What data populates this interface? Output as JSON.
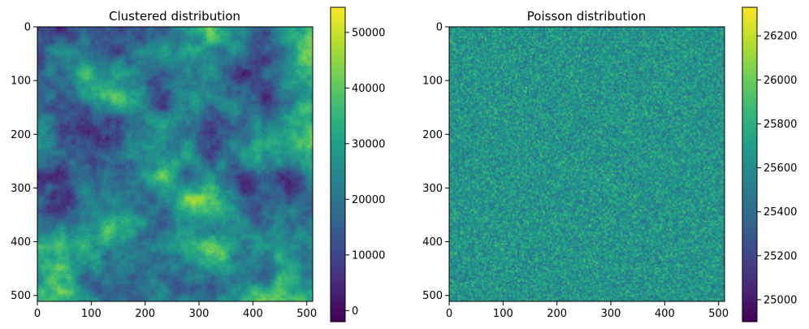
{
  "chart_data": [
    {
      "type": "heatmap",
      "title": "Clustered distribution",
      "xlim": [
        0,
        511
      ],
      "ylim": [
        511,
        0
      ],
      "x_ticks": [
        0,
        100,
        200,
        300,
        400,
        500
      ],
      "y_ticks": [
        0,
        100,
        200,
        300,
        400,
        500
      ],
      "colormap": "viridis",
      "color_range": [
        -2000,
        54500
      ],
      "colorbar_ticks": [
        0,
        10000,
        20000,
        30000,
        40000,
        50000
      ],
      "texture": "clustered"
    },
    {
      "type": "heatmap",
      "title": "Poisson distribution",
      "xlim": [
        0,
        511
      ],
      "ylim": [
        511,
        0
      ],
      "x_ticks": [
        0,
        100,
        200,
        300,
        400,
        500
      ],
      "y_ticks": [
        0,
        100,
        200,
        300,
        400,
        500
      ],
      "colormap": "viridis",
      "color_range": [
        24900,
        26330
      ],
      "colorbar_ticks": [
        25000,
        25200,
        25400,
        25600,
        25800,
        26000,
        26200
      ],
      "texture": "poisson"
    }
  ]
}
